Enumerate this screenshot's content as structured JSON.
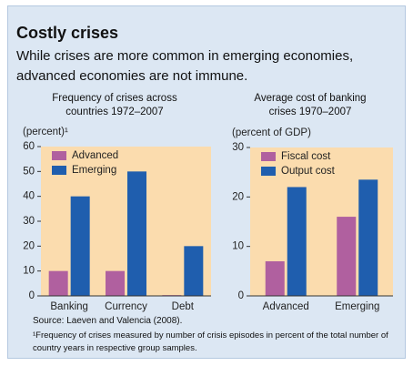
{
  "title": "Costly crises",
  "subtitle": "While crises are more common in emerging economies, advanced economies are not immune.",
  "chart_data": [
    {
      "type": "bar",
      "title": "Frequency of crises across countries 1972–2007",
      "ylabel": "(percent)¹",
      "categories": [
        "Banking",
        "Currency",
        "Debt"
      ],
      "series": [
        {
          "name": "Advanced",
          "color": "#b0609f",
          "values": [
            10,
            10,
            0.3
          ]
        },
        {
          "name": "Emerging",
          "color": "#1f5eae",
          "values": [
            40,
            50,
            20
          ]
        }
      ],
      "ylim": [
        0,
        60
      ],
      "yticks": [
        0,
        10,
        20,
        30,
        40,
        50,
        60
      ],
      "legend": "upper left"
    },
    {
      "type": "bar",
      "title": "Average cost of banking crises 1970–2007",
      "ylabel": "(percent of GDP)",
      "categories": [
        "Advanced",
        "Emerging"
      ],
      "series": [
        {
          "name": "Fiscal cost",
          "color": "#b0609f",
          "values": [
            7,
            16
          ]
        },
        {
          "name": "Output cost",
          "color": "#1f5eae",
          "values": [
            22,
            23.5
          ]
        }
      ],
      "ylim": [
        0,
        30
      ],
      "yticks": [
        0,
        10,
        20,
        30
      ],
      "legend": "upper left"
    }
  ],
  "source": "Source: Laeven and Valencia (2008).",
  "note": "¹Frequency of crises measured by number of crisis episodes in percent of the total number of country years in respective group samples."
}
